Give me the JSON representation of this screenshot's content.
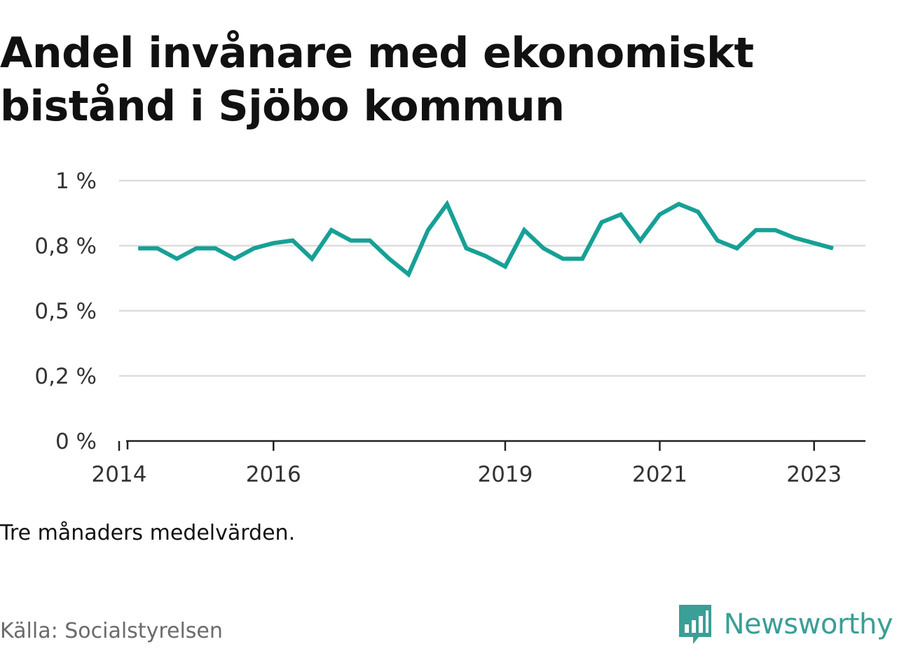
{
  "title": "Andel invånare med ekonomiskt bistånd i Sjöbo kommun",
  "note": "Tre månaders medelvärden.",
  "source": "Källa: Socialstyrelsen",
  "brand": {
    "name": "Newsworthy",
    "icon": "bar-chart-speech-bubble-icon",
    "color": "#3a9f97"
  },
  "colors": {
    "line": "#17a096",
    "grid": "#dddddd",
    "axis": "#222222",
    "tick_text": "#333333"
  },
  "chart_data": {
    "type": "line",
    "title": "Andel invånare med ekonomiskt bistånd i Sjöbo kommun",
    "xlabel": "",
    "ylabel": "",
    "ylim": [
      0,
      1
    ],
    "xlim": [
      "2014-01-01",
      "2023-09-01"
    ],
    "grid": true,
    "x_tick_labels": [
      "2014",
      "2016",
      "2019",
      "2021",
      "2023"
    ],
    "x_ticks": [
      "2014-01-01",
      "2016-01-01",
      "2019-01-01",
      "2021-01-01",
      "2023-01-01"
    ],
    "y_tick_labels": [
      "0 %",
      "0,2 %",
      "0,5 %",
      "0,8 %",
      "1 %"
    ],
    "y_ticks": [
      0,
      0.25,
      0.5,
      0.75,
      1.0
    ],
    "series": [
      {
        "x": [
          "2014-04-01",
          "2014-07-01",
          "2014-10-01",
          "2015-01-01",
          "2015-04-01",
          "2015-07-01",
          "2015-10-01",
          "2016-01-01",
          "2016-04-01",
          "2016-07-01",
          "2016-10-01",
          "2017-01-01",
          "2017-04-01",
          "2017-07-01",
          "2017-10-01",
          "2018-01-01",
          "2018-04-01",
          "2018-07-01",
          "2018-10-01",
          "2019-01-01",
          "2019-04-01",
          "2019-07-01",
          "2019-10-01",
          "2020-01-01",
          "2020-04-01",
          "2020-07-01",
          "2020-10-01",
          "2021-01-01",
          "2021-04-01",
          "2021-07-01",
          "2021-10-01",
          "2022-01-01",
          "2022-04-01",
          "2022-07-01",
          "2022-10-01",
          "2023-01-01",
          "2023-04-01"
        ],
        "values": [
          0.74,
          0.74,
          0.7,
          0.74,
          0.74,
          0.7,
          0.74,
          0.76,
          0.77,
          0.7,
          0.81,
          0.77,
          0.77,
          0.7,
          0.64,
          0.81,
          0.91,
          0.74,
          0.71,
          0.67,
          0.81,
          0.74,
          0.7,
          0.7,
          0.84,
          0.87,
          0.77,
          0.87,
          0.91,
          0.88,
          0.77,
          0.74,
          0.81,
          0.81,
          0.78,
          0.76,
          0.74
        ]
      }
    ]
  }
}
